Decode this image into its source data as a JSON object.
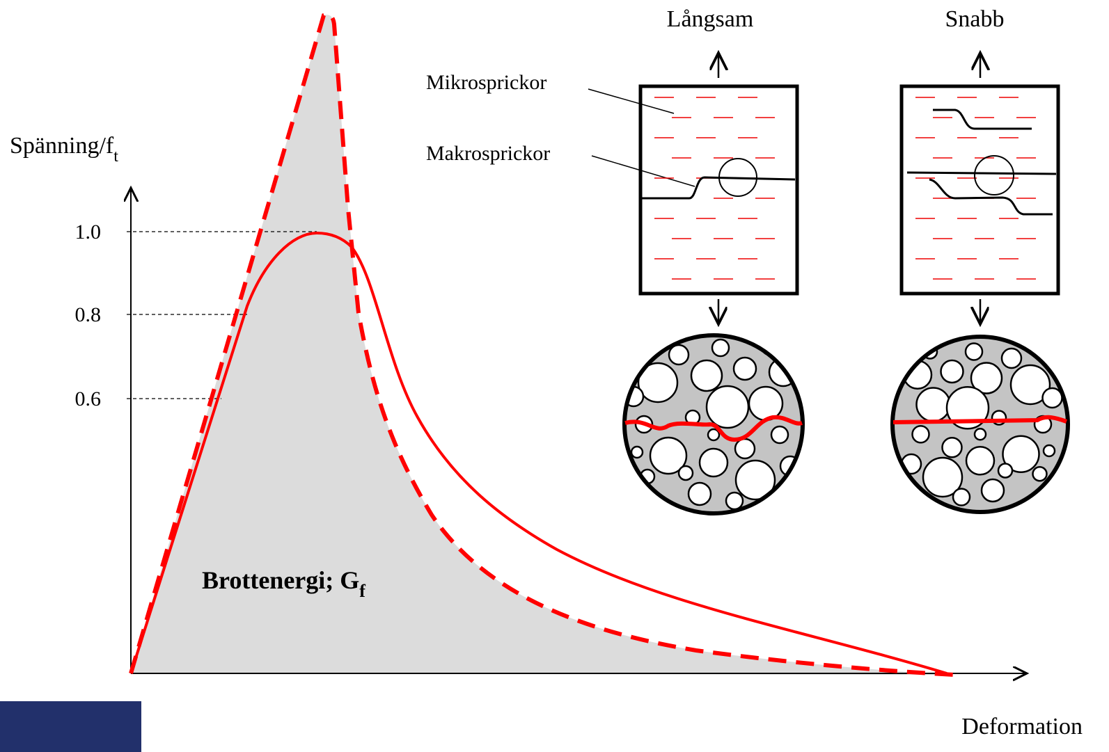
{
  "y_axis": {
    "label": "Spänning/f",
    "label_sub": "t",
    "ticks": [
      "1.0",
      "0.8",
      "0.6"
    ]
  },
  "x_axis": {
    "label": "Deformation"
  },
  "area_label": {
    "text": "Brottenergi; G",
    "sub": "f"
  },
  "panels": [
    {
      "title": "Långsam"
    },
    {
      "title": "Snabb"
    }
  ],
  "callouts": [
    "Mikrosprickor",
    "Makrosprickor"
  ]
}
